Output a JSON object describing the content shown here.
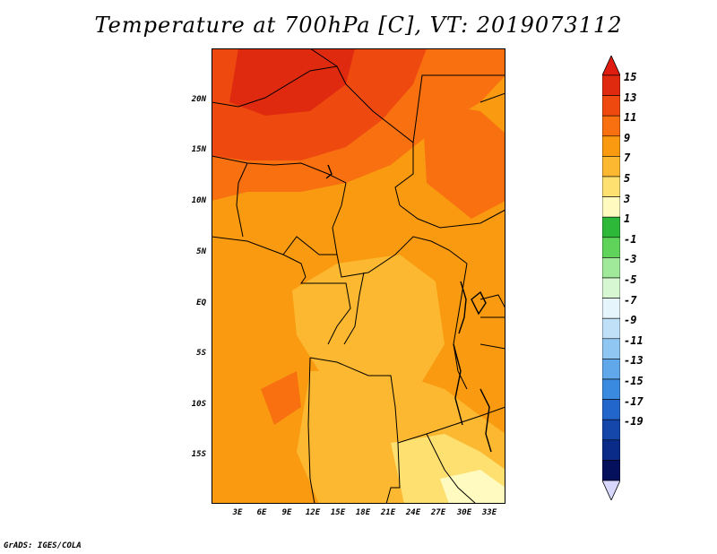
{
  "title": "Temperature at 700hPa [C], VT: 2019073112",
  "credit": "GrADS: IGES/COLA",
  "map": {
    "lat_labels": [
      "20N",
      "15N",
      "10N",
      "5N",
      "EQ",
      "5S",
      "10S",
      "15S"
    ],
    "lon_labels": [
      "3E",
      "6E",
      "9E",
      "12E",
      "15E",
      "18E",
      "21E",
      "24E",
      "27E",
      "30E",
      "33E"
    ]
  },
  "colorbar": {
    "labels": [
      "15",
      "13",
      "11",
      "9",
      "7",
      "5",
      "3",
      "1",
      "-1",
      "-3",
      "-5",
      "-7",
      "-9",
      "-11",
      "-13",
      "-15",
      "-17",
      "-19"
    ],
    "colors": [
      "#e02a10",
      "#ee4a10",
      "#f87010",
      "#fa9a10",
      "#fcb830",
      "#fde070",
      "#fffbc0",
      "#2db83a",
      "#5fd35a",
      "#a0e89a",
      "#d6f7d2",
      "#e6f4fb",
      "#bfe0f7",
      "#90c6f2",
      "#60a8ea",
      "#3a8ae0",
      "#2266cc",
      "#1547aa",
      "#0a2c88",
      "#05105c"
    ],
    "top_cap": "#e01c10",
    "bottom_cap": "#d8d8ff"
  }
}
